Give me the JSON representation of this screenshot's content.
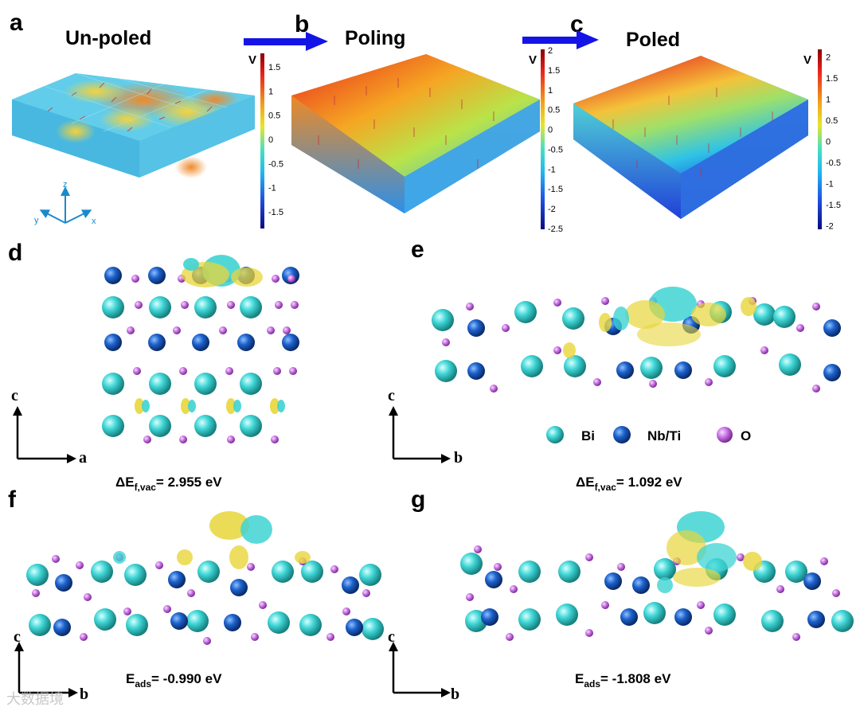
{
  "top_row": {
    "panels": [
      {
        "letter": "a",
        "title": "Un-poled"
      },
      {
        "letter": "b",
        "title": "Poling"
      },
      {
        "letter": "c",
        "title": "Poled"
      }
    ],
    "colorbars": [
      {
        "unit": "V",
        "ticks": [
          "1.5",
          "1",
          "0.5",
          "0",
          "-0.5",
          "-1",
          "-1.5"
        ]
      },
      {
        "unit": "V",
        "ticks": [
          "2",
          "1.5",
          "1",
          "0.5",
          "0",
          "-0.5",
          "-1",
          "-1.5",
          "-2",
          "-2.5"
        ]
      },
      {
        "unit": "V",
        "ticks": [
          "2",
          "1.5",
          "1",
          "0.5",
          "0",
          "-0.5",
          "-1",
          "-1.5",
          "-2"
        ]
      }
    ],
    "triad": {
      "x": "x",
      "y": "y",
      "z": "z"
    }
  },
  "panel_d": {
    "letter": "d",
    "axis_up": "c",
    "axis_right": "a",
    "energy_main": "ΔE",
    "energy_sub": "f,vac",
    "energy_value": "= 2.955 eV"
  },
  "panel_e": {
    "letter": "e",
    "axis_up": "c",
    "axis_right": "b",
    "energy_main": "ΔE",
    "energy_sub": "f,vac",
    "energy_value": "= 1.092 eV"
  },
  "panel_f": {
    "letter": "f",
    "axis_up": "c",
    "axis_right": "b",
    "energy_main": "E",
    "energy_sub": "ads",
    "energy_value": "= -0.990 eV"
  },
  "panel_g": {
    "letter": "g",
    "axis_up": "c",
    "axis_right": "b",
    "energy_main": "E",
    "energy_sub": "ads",
    "energy_value": "= -1.808 eV"
  },
  "legend": [
    {
      "label": "Bi",
      "color": "#3ed3d3"
    },
    {
      "label": "Nb/Ti",
      "color": "#1a5fc8"
    },
    {
      "label": "O",
      "color": "#c86fe0"
    }
  ],
  "watermark": "大数据境"
}
